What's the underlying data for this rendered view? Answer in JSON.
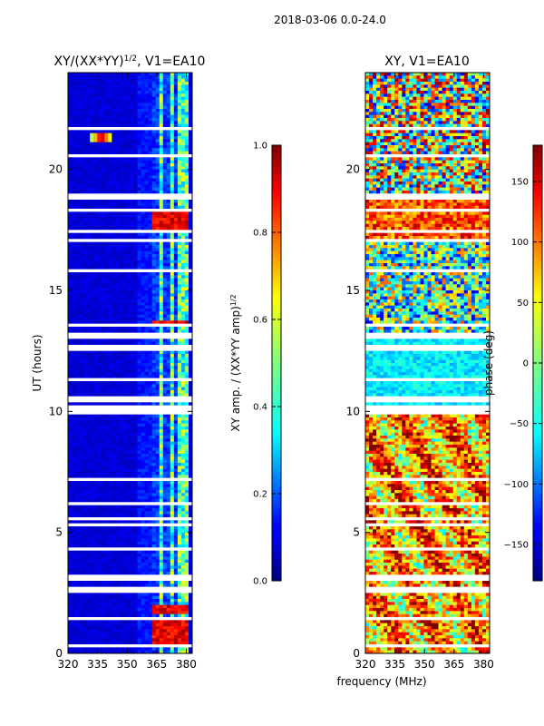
{
  "figure": {
    "suptitle": "2018-03-06 0.0-24.0",
    "shared_xlabel": "frequency (MHz)"
  },
  "chart_data": [
    {
      "type": "heatmap",
      "id": "amp",
      "title": "XY/(XX*YY)^1/2, V1=EA10",
      "title_main": "XY/(XX*YY)",
      "title_exp": "1/2",
      "title_tail": ", V1=EA10",
      "xlabel": "",
      "ylabel": "UT (hours)",
      "xlim": [
        320,
        383
      ],
      "ylim": [
        0,
        24
      ],
      "xticks": [
        320,
        335,
        350,
        365,
        380
      ],
      "yticks": [
        0,
        5,
        10,
        15,
        20
      ],
      "colormap": "jet",
      "colorbar": {
        "label": "XY amp. / (XX*YY amp)^1/2",
        "label_main": "XY amp. / (XX*YY amp)",
        "label_exp": "1/2",
        "range": [
          0.0,
          1.0
        ],
        "ticks": [
          "0.0",
          "0.2",
          "0.4",
          "0.6",
          "0.8",
          "1.0"
        ]
      }
    },
    {
      "type": "heatmap",
      "id": "phase",
      "title": "XY, V1=EA10",
      "xlabel": "frequency (MHz)",
      "ylabel": "",
      "xlim": [
        320,
        383
      ],
      "ylim": [
        0,
        24
      ],
      "xticks": [
        320,
        335,
        350,
        365,
        380
      ],
      "yticks": [
        0,
        5,
        10,
        15,
        20
      ],
      "colormap": "jet",
      "colorbar": {
        "label": "phase (deg)",
        "range": [
          -180,
          180
        ],
        "ticks": [
          "−150",
          "−100",
          "−50",
          "0",
          "50",
          "100",
          "150"
        ]
      }
    }
  ],
  "blank_ut_intervals": [
    [
      0.3,
      0.42
    ],
    [
      1.4,
      1.52
    ],
    [
      2.55,
      2.7
    ],
    [
      3.0,
      3.3
    ],
    [
      3.45,
      3.55
    ],
    [
      4.3,
      4.4
    ],
    [
      5.2,
      5.4
    ],
    [
      5.55,
      5.65
    ],
    [
      6.1,
      6.2
    ],
    [
      7.1,
      7.2
    ],
    [
      9.9,
      10.2
    ],
    [
      10.4,
      10.6
    ],
    [
      11.1,
      11.15
    ],
    [
      11.3,
      11.35
    ],
    [
      11.5,
      11.55
    ],
    [
      11.7,
      11.75
    ],
    [
      12.55,
      12.7
    ],
    [
      13.0,
      13.3
    ],
    [
      13.55,
      13.62
    ],
    [
      14.6,
      14.66
    ],
    [
      15.8,
      15.86
    ],
    [
      16.5,
      16.56
    ],
    [
      17.0,
      17.08
    ],
    [
      17.4,
      17.48
    ],
    [
      18.3,
      18.36
    ],
    [
      18.7,
      18.95
    ],
    [
      20.5,
      20.6
    ],
    [
      21.6,
      21.75
    ],
    [
      22.2,
      22.3
    ],
    [
      22.5,
      22.56
    ],
    [
      23.0,
      23.06
    ],
    [
      23.5,
      23.56
    ]
  ]
}
